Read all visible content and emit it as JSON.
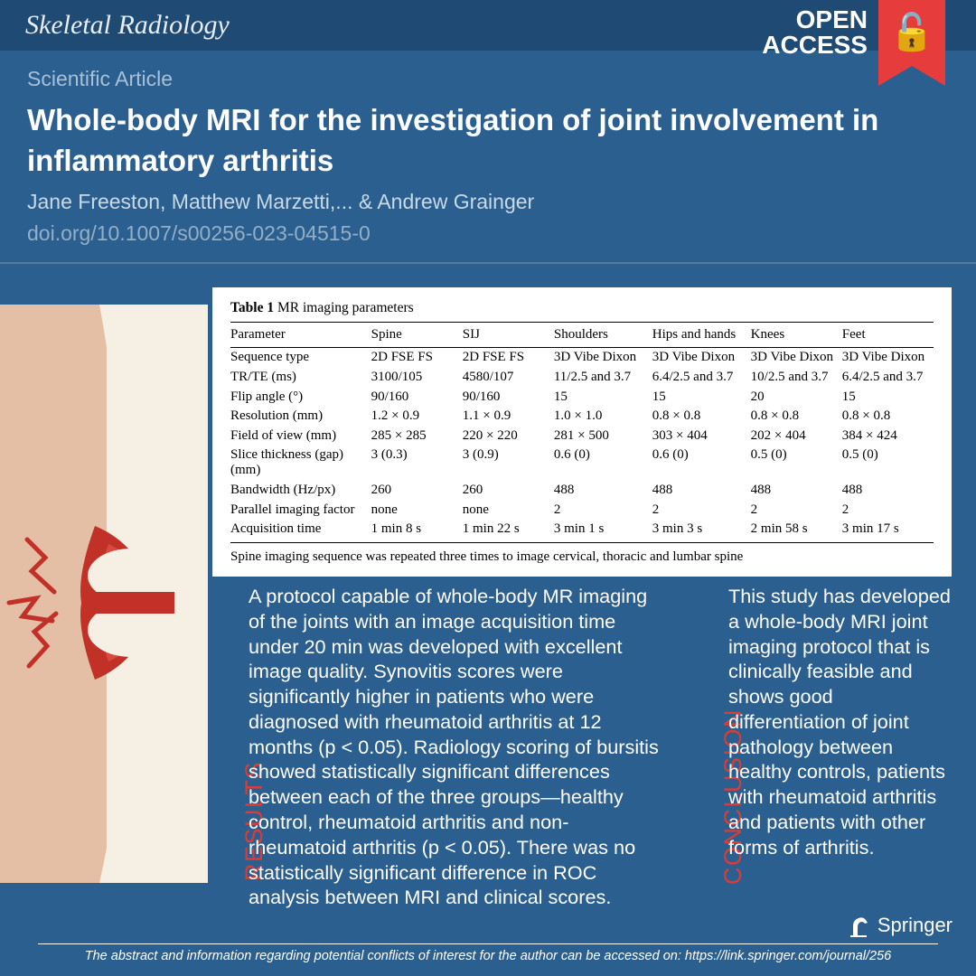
{
  "header": {
    "journal": "Skeletal Radiology",
    "open_access": "OPEN ACCESS",
    "article_type": "Scientific Article",
    "title": "Whole-body MRI for the investigation of joint involvement in inflammatory arthritis",
    "authors": "Jane Freeston, Matthew Marzetti,... & Andrew Grainger",
    "doi": "doi.org/10.1007/s00256-023-04515-0"
  },
  "colors": {
    "page_bg": "#2b5f8f",
    "bar_bg": "#1e4a73",
    "accent_red": "#dc3c35",
    "ribbon_red": "#e73c3c"
  },
  "table": {
    "caption_bold": "Table 1",
    "caption_rest": "  MR imaging parameters",
    "columns": [
      "Parameter",
      "Spine",
      "SIJ",
      "Shoulders",
      "Hips and hands",
      "Knees",
      "Feet"
    ],
    "col_widths_pct": [
      20,
      13,
      13,
      14,
      14,
      13,
      13
    ],
    "rows": [
      [
        "Sequence type",
        "2D FSE FS",
        "2D FSE FS",
        "3D Vibe Dixon",
        "3D Vibe Dixon",
        "3D Vibe Dixon",
        "3D Vibe Dixon"
      ],
      [
        "TR/TE (ms)",
        "3100/105",
        "4580/107",
        "11/2.5 and 3.7",
        "6.4/2.5 and 3.7",
        "10/2.5 and 3.7",
        "6.4/2.5 and 3.7"
      ],
      [
        "Flip angle (°)",
        "90/160",
        "90/160",
        "15",
        "15",
        "20",
        "15"
      ],
      [
        "Resolution (mm)",
        "1.2 × 0.9",
        "1.1 × 0.9",
        "1.0 × 1.0",
        "0.8 × 0.8",
        "0.8 × 0.8",
        "0.8 × 0.8"
      ],
      [
        "Field of view (mm)",
        "285 × 285",
        "220 × 220",
        "281 × 500",
        "303 × 404",
        "202 × 404",
        "384 × 424"
      ],
      [
        "Slice thickness (gap) (mm)",
        "3 (0.3)",
        "3 (0.9)",
        "0.6 (0)",
        "0.6 (0)",
        "0.5 (0)",
        "0.5 (0)"
      ],
      [
        "Bandwidth (Hz/px)",
        "260",
        "260",
        "488",
        "488",
        "488",
        "488"
      ],
      [
        "Parallel imaging factor",
        "none",
        "none",
        "2",
        "2",
        "2",
        "2"
      ],
      [
        "Acquisition time",
        "1 min 8 s",
        "1 min 22 s",
        "3 min 1 s",
        "3 min 3 s",
        "2 min 58 s",
        "3 min 17 s"
      ]
    ],
    "note": "Spine imaging sequence was repeated three times to image cervical, thoracic and lumbar spine"
  },
  "sections": {
    "results_label": "RESULTS",
    "results_text": "A protocol capable of whole-body MR imaging of the joints with an image acquisition time under 20 min was developed with excellent image quality. Synovitis scores were significantly higher in patients who were diagnosed with rheumatoid arthritis at 12 months (p < 0.05). Radiology scoring of bursitis showed statistically significant differences between each of the three groups—healthy control, rheumatoid arthritis and non-rheumatoid arthritis (p < 0.05). There was no statistically significant difference in ROC analysis between MRI and clinical scores.",
    "conclusion_label": "CONCLUSION",
    "conclusion_text": "This study has developed a whole-body MRI joint imaging protocol that is clinically feasible and shows good differentiation of joint pathology between healthy controls, patients with rheumatoid arthritis and patients with other forms of arthritis."
  },
  "footer": {
    "publisher": "Springer",
    "note": "The abstract and information regarding potential conflicts of interest for the author can be accessed on:  https://link.springer.com/journal/256"
  },
  "knee_graphic": {
    "skin_color": "#e4bfa5",
    "bone_color": "#f5efe4",
    "inflamed_color": "#c13128",
    "inflamed_mid": "#d94a3e"
  }
}
